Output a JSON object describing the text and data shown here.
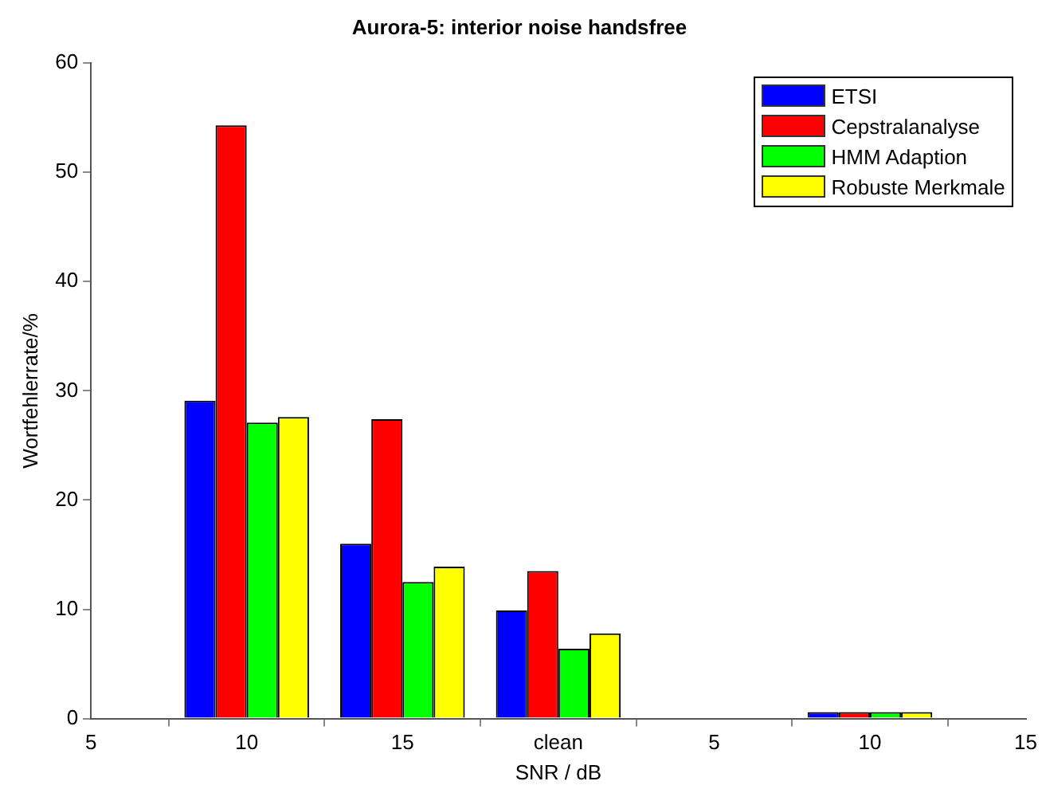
{
  "chart_data": {
    "type": "bar",
    "title": "Aurora-5: interior noise handsfree",
    "xlabel": "SNR / dB",
    "ylabel": "Wortfehlerrate/%",
    "categories": [
      "5",
      "10",
      "15",
      "clean",
      "5",
      "10",
      "15"
    ],
    "series": [
      {
        "name": "ETSI",
        "color": "#0000ff",
        "values": [
          null,
          29.1,
          16.0,
          9.9,
          null,
          0.6,
          null
        ]
      },
      {
        "name": "Cepstralanalyse",
        "color": "#ff0000",
        "values": [
          null,
          54.3,
          27.4,
          13.5,
          null,
          0.6,
          null
        ]
      },
      {
        "name": "HMM Adaption",
        "color": "#00ff00",
        "values": [
          null,
          27.1,
          12.5,
          6.4,
          null,
          0.6,
          null
        ]
      },
      {
        "name": "Robuste Merkmale",
        "color": "#ffff00",
        "values": [
          null,
          27.6,
          13.9,
          7.8,
          null,
          0.6,
          null
        ]
      }
    ],
    "ylim": [
      0,
      60
    ],
    "yticks": [
      0,
      10,
      20,
      30,
      40,
      50,
      60
    ],
    "legend": "top right"
  }
}
